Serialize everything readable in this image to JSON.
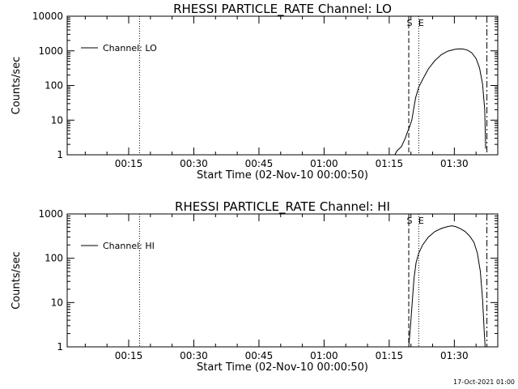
{
  "footer_timestamp": "17-Oct-2021 01:00",
  "chart_data": [
    {
      "type": "line",
      "title": "RHESSI PARTICLE_RATE Channel: LO",
      "xlabel": "Start Time (02-Nov-10 00:00:50)",
      "ylabel": "Counts/sec",
      "yscale": "log",
      "ylim": [
        1,
        10000
      ],
      "xlim_minutes": [
        0.833,
        100.0
      ],
      "x_ticks": [
        15,
        30,
        45,
        60,
        75,
        90
      ],
      "x_tick_labels": [
        "00:15",
        "00:30",
        "00:45",
        "01:00",
        "01:15",
        "01:30"
      ],
      "y_ticks": [
        1,
        10,
        100,
        1000,
        10000
      ],
      "y_tick_labels": [
        "1",
        "10",
        "100",
        "1000",
        "10000"
      ],
      "legend": {
        "label": "Channel: LO",
        "position": "top-left"
      },
      "markers": [
        {
          "x": 17.5,
          "style": "dotted",
          "label": ""
        },
        {
          "x": 79.5,
          "style": "dashed",
          "label": "S"
        },
        {
          "x": 81.8,
          "style": "dotted",
          "label": "E"
        },
        {
          "x": 97.5,
          "style": "dashdot",
          "label": ""
        }
      ],
      "series": [
        {
          "name": "Channel: LO",
          "points": [
            [
              76.3,
              1
            ],
            [
              76.8,
              1.3
            ],
            [
              77.3,
              1.5
            ],
            [
              77.8,
              1.7
            ],
            [
              78.2,
              2.2
            ],
            [
              78.7,
              3.0
            ],
            [
              79.2,
              4.5
            ],
            [
              79.7,
              6.5
            ],
            [
              80.2,
              10
            ],
            [
              80.6,
              20
            ],
            [
              81.1,
              45
            ],
            [
              81.8,
              90
            ],
            [
              82.7,
              150
            ],
            [
              84.0,
              300
            ],
            [
              85.5,
              520
            ],
            [
              87.0,
              780
            ],
            [
              88.5,
              980
            ],
            [
              90.0,
              1100
            ],
            [
              91.0,
              1150
            ],
            [
              92.0,
              1130
            ],
            [
              93.0,
              1050
            ],
            [
              94.0,
              880
            ],
            [
              95.0,
              600
            ],
            [
              95.8,
              320
            ],
            [
              96.5,
              110
            ],
            [
              97.0,
              20
            ],
            [
              97.2,
              1.5
            ]
          ]
        }
      ]
    },
    {
      "type": "line",
      "title": "RHESSI PARTICLE_RATE Channel: HI",
      "xlabel": "Start Time (02-Nov-10 00:00:50)",
      "ylabel": "Counts/sec",
      "yscale": "log",
      "ylim": [
        1,
        1000
      ],
      "xlim_minutes": [
        0.833,
        100.0
      ],
      "x_ticks": [
        15,
        30,
        45,
        60,
        75,
        90
      ],
      "x_tick_labels": [
        "00:15",
        "00:30",
        "00:45",
        "01:00",
        "01:15",
        "01:30"
      ],
      "y_ticks": [
        1,
        10,
        100,
        1000
      ],
      "y_tick_labels": [
        "1",
        "10",
        "100",
        "1000"
      ],
      "legend": {
        "label": "Channel: HI",
        "position": "top-left"
      },
      "markers": [
        {
          "x": 17.5,
          "style": "dotted",
          "label": ""
        },
        {
          "x": 79.5,
          "style": "dashed",
          "label": "S"
        },
        {
          "x": 81.8,
          "style": "dotted",
          "label": "E"
        },
        {
          "x": 97.5,
          "style": "dashdot",
          "label": ""
        }
      ],
      "series": [
        {
          "name": "Channel: HI",
          "points": [
            [
              79.5,
              1
            ],
            [
              79.9,
              3
            ],
            [
              80.3,
              10
            ],
            [
              80.7,
              35
            ],
            [
              81.2,
              80
            ],
            [
              81.8,
              130
            ],
            [
              82.7,
              200
            ],
            [
              84.0,
              300
            ],
            [
              85.5,
              400
            ],
            [
              87.0,
              470
            ],
            [
              88.5,
              520
            ],
            [
              89.5,
              540
            ],
            [
              90.5,
              510
            ],
            [
              91.5,
              460
            ],
            [
              92.5,
              400
            ],
            [
              93.5,
              320
            ],
            [
              94.5,
              230
            ],
            [
              95.3,
              130
            ],
            [
              96.0,
              50
            ],
            [
              96.5,
              12
            ],
            [
              96.9,
              2
            ],
            [
              97.1,
              1
            ]
          ]
        }
      ]
    }
  ]
}
